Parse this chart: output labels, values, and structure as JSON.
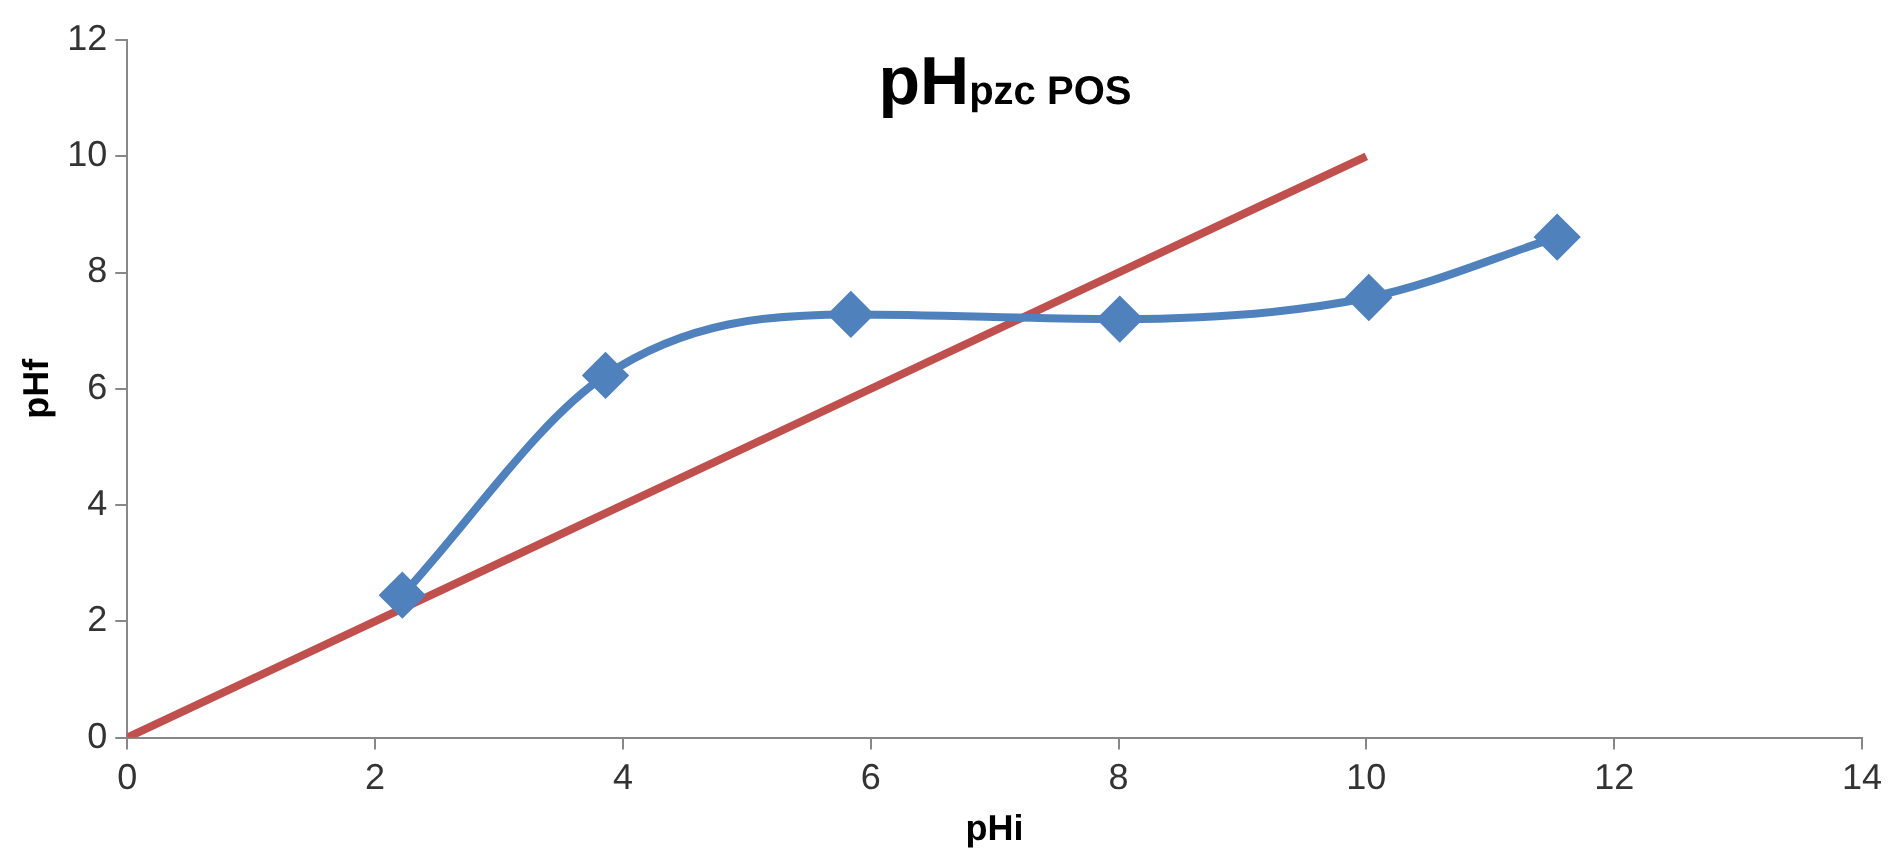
{
  "chart_data": {
    "type": "line",
    "title": "pH$_{pzc POS}$",
    "xlabel": "pHi",
    "ylabel": "pHf",
    "xlim": [
      0,
      14
    ],
    "xticks": [
      0,
      2,
      4,
      6,
      8,
      10,
      12,
      14
    ],
    "ylim": [
      0,
      12
    ],
    "yticks": [
      0,
      2,
      4,
      6,
      8,
      10,
      12
    ],
    "grid": false,
    "legend": false,
    "series": [
      {
        "color": "#4f81bd",
        "x": [
          2.22,
          3.86,
          5.84,
          8.01,
          10.02,
          11.54
        ],
        "values": [
          2.45,
          6.23,
          7.28,
          7.2,
          7.57,
          8.61
        ],
        "marker": "diamond"
      },
      {
        "color": "#c0504d",
        "x": [
          0,
          10
        ],
        "values": [
          0,
          10
        ],
        "marker": "none"
      }
    ]
  }
}
